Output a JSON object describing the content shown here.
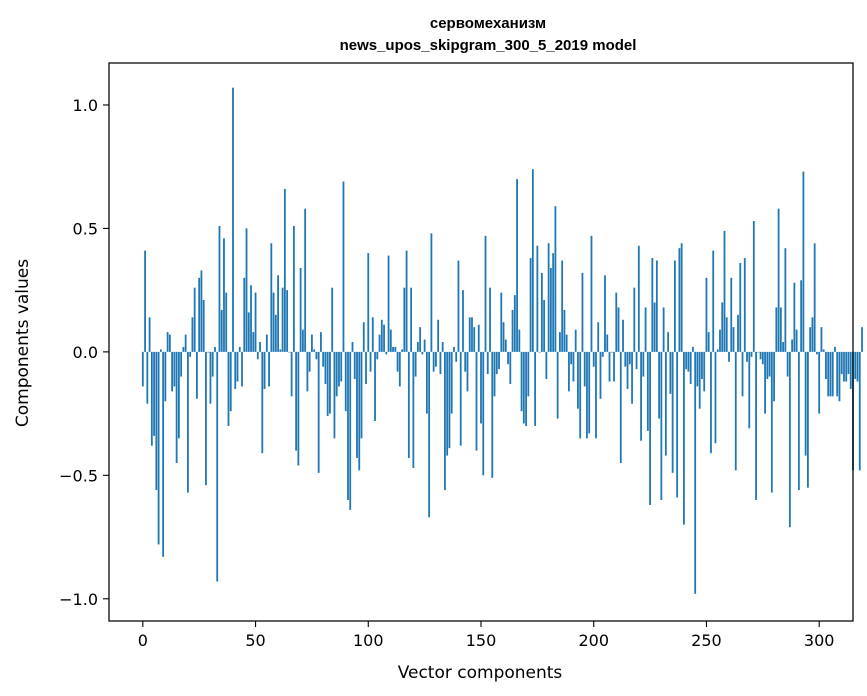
{
  "chart_data": {
    "type": "bar",
    "title": "сервомеханизм",
    "subtitle": "news_upos_skipgram_300_5_2019 model",
    "xlabel": "Vector components",
    "ylabel": "Components values",
    "xlim": [
      -15,
      315
    ],
    "ylim": [
      -1.09,
      1.17
    ],
    "x_ticks": [
      0,
      50,
      100,
      150,
      200,
      250,
      300
    ],
    "x_tick_labels": [
      "0",
      "50",
      "100",
      "150",
      "200",
      "250",
      "300"
    ],
    "y_ticks": [
      1.0,
      0.5,
      0.0,
      -0.5,
      -1.0
    ],
    "y_tick_labels": [
      "1.0",
      "0.5",
      "0.0",
      "−0.5",
      "−1.0"
    ],
    "grid": false,
    "bar_color": "#1f77b4",
    "series": [
      {
        "values": [
          -0.14,
          0.41,
          -0.21,
          0.14,
          -0.38,
          -0.34,
          -0.56,
          -0.78,
          0.01,
          -0.83,
          -0.2,
          0.08,
          0.07,
          -0.16,
          -0.14,
          -0.45,
          -0.35,
          -0.1,
          0.02,
          0.07,
          -0.57,
          -0.02,
          0.14,
          0.26,
          -0.19,
          0.3,
          0.33,
          0.21,
          -0.54,
          0.0,
          -0.21,
          -0.1,
          0.02,
          -0.93,
          0.51,
          0.17,
          0.46,
          0.24,
          -0.3,
          -0.24,
          1.07,
          -0.15,
          -0.12,
          0.02,
          -0.14,
          0.3,
          0.5,
          0.16,
          0.27,
          0.08,
          0.24,
          -0.03,
          0.04,
          -0.41,
          -0.15,
          0.07,
          -0.14,
          0.44,
          0.24,
          0.15,
          0.31,
          0.01,
          0.26,
          0.66,
          0.25,
          0.0,
          -0.18,
          0.51,
          -0.4,
          -0.46,
          0.34,
          0.09,
          0.58,
          -0.16,
          -0.08,
          0.07,
          0.01,
          -0.03,
          -0.49,
          0.08,
          -0.06,
          -0.13,
          -0.26,
          -0.25,
          0.26,
          -0.35,
          -0.18,
          -0.14,
          -0.12,
          0.69,
          -0.24,
          -0.6,
          -0.64,
          0.04,
          -0.11,
          -0.43,
          -0.48,
          -0.35,
          0.12,
          -0.13,
          0.4,
          -0.08,
          0.14,
          -0.28,
          -0.03,
          0.07,
          0.13,
          0.11,
          -0.01,
          0.39,
          0.09,
          0.02,
          0.02,
          -0.08,
          -0.14,
          0.01,
          0.26,
          0.41,
          -0.43,
          0.26,
          -0.47,
          -0.1,
          0.04,
          0.1,
          -0.01,
          0.05,
          -0.25,
          -0.67,
          0.48,
          -0.08,
          -0.06,
          0.13,
          -0.09,
          0.04,
          -0.56,
          -0.42,
          -0.39,
          -0.25,
          0.02,
          -0.04,
          0.37,
          -0.38,
          0.25,
          -0.08,
          -0.16,
          0.14,
          0.14,
          0.1,
          -0.4,
          0.11,
          -0.29,
          -0.5,
          0.47,
          -0.09,
          0.26,
          -0.51,
          -0.18,
          -0.09,
          -0.07,
          0.24,
          0.12,
          0.05,
          -0.05,
          -0.13,
          0.17,
          0.23,
          0.7,
          0.09,
          -0.24,
          -0.29,
          -0.3,
          -0.18,
          0.38,
          0.74,
          -0.3,
          0.43,
          0.0,
          0.32,
          0.21,
          -0.11,
          0.44,
          0.34,
          0.4,
          0.59,
          -0.27,
          0.08,
          0.37,
          0.17,
          0.07,
          -0.16,
          -0.05,
          -0.12,
          0.09,
          -0.23,
          -0.35,
          0.32,
          -0.14,
          -0.35,
          -0.33,
          0.47,
          -0.06,
          -0.35,
          0.12,
          -0.19,
          -0.02,
          0.31,
          0.07,
          -0.12,
          0.0,
          -0.12,
          0.24,
          0.18,
          -0.45,
          0.13,
          -0.06,
          -0.15,
          -0.05,
          -0.21,
          0.26,
          -0.07,
          0.43,
          -0.36,
          -0.1,
          0.18,
          -0.32,
          -0.62,
          0.38,
          0.2,
          0.37,
          -0.27,
          -0.6,
          0.18,
          -0.42,
          0.08,
          -0.17,
          -0.49,
          0.37,
          -0.59,
          0.42,
          0.44,
          -0.7,
          -0.07,
          -0.08,
          -0.13,
          0.02,
          -0.98,
          -0.14,
          -0.23,
          -0.11,
          -0.16,
          0.3,
          0.08,
          -0.41,
          0.41,
          -0.37,
          0.01,
          0.09,
          0.2,
          0.49,
          0.14,
          -0.04,
          0.3,
          0.1,
          -0.48,
          0.15,
          0.36,
          -0.18,
          0.38,
          -0.04,
          -0.31,
          -0.02,
          0.53,
          -0.6,
          0.0,
          -0.03,
          -0.05,
          -0.25,
          -0.11,
          -0.1,
          -0.57,
          -0.2,
          0.18,
          0.58,
          0.18,
          0.04,
          0.42,
          -0.1,
          -0.71,
          0.05,
          0.28,
          0.09,
          -0.56,
          0.29,
          0.73,
          -0.42,
          -0.55,
          0.1,
          0.14,
          0.44,
          -0.01,
          -0.25,
          0.1,
          0.01,
          -0.11,
          -0.18,
          -0.18,
          -0.18,
          0.02,
          -0.18,
          -0.2,
          -0.09,
          -0.12,
          -0.12,
          -0.09,
          -0.15,
          -0.48,
          -0.11,
          -0.12,
          -0.48,
          0.1
        ]
      }
    ]
  }
}
